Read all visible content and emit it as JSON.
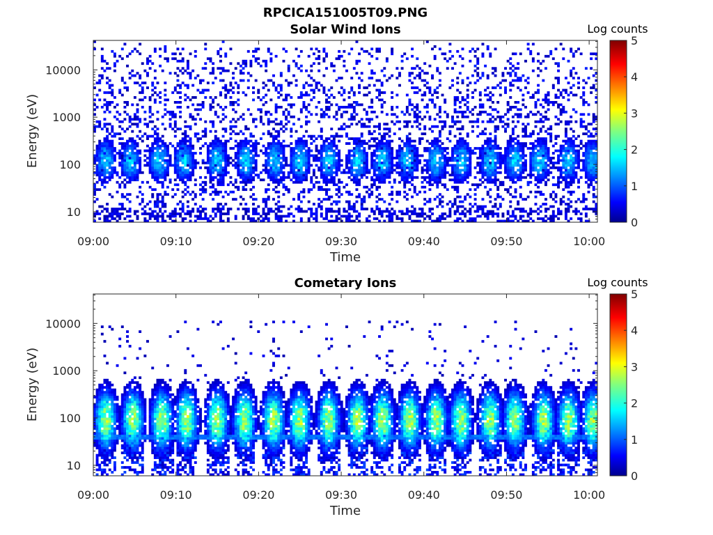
{
  "figure_title": "RPCICA151005T09.PNG",
  "chart_data": [
    {
      "type": "heatmap",
      "title": "Solar Wind Ions",
      "xlabel": "Time",
      "ylabel": "Energy (eV)",
      "x_ticks": [
        "09:00",
        "09:10",
        "09:20",
        "09:30",
        "09:40",
        "09:50",
        "10:00"
      ],
      "x_range": [
        "09:00",
        "10:01"
      ],
      "y_scale": "log",
      "y_ticks": [
        10,
        100,
        1000,
        10000
      ],
      "y_tick_labels": [
        "10",
        "100",
        "1000",
        "10000"
      ],
      "y_range_eV": [
        6,
        42000
      ],
      "colorbar": {
        "label": "Log counts",
        "min": 0,
        "max": 5,
        "ticks": [
          "0",
          "1",
          "2",
          "3",
          "4",
          "5"
        ],
        "colormap": "jet"
      },
      "pattern": "sparse low-count background (0-1) across 8-30000 eV; periodic bursts ~1.5-2 log counts near 60-300 eV roughly every 3.3 minutes",
      "burst_times_min": [
        1.5,
        4.5,
        8,
        11,
        15,
        18.5,
        22,
        25,
        28.5,
        32,
        35,
        38,
        41.5,
        44.5,
        48,
        51,
        54,
        57.5,
        60.5
      ],
      "burst_center_eV": 120,
      "burst_peak_log_counts": 1.8
    },
    {
      "type": "heatmap",
      "title": "Cometary Ions",
      "xlabel": "Time",
      "ylabel": "Energy (eV)",
      "x_ticks": [
        "09:00",
        "09:10",
        "09:20",
        "09:30",
        "09:40",
        "09:50",
        "10:00"
      ],
      "x_range": [
        "09:00",
        "10:01"
      ],
      "y_scale": "log",
      "y_ticks": [
        10,
        100,
        1000,
        10000
      ],
      "y_tick_labels": [
        "10",
        "100",
        "1000",
        "10000"
      ],
      "y_range_eV": [
        6,
        42000
      ],
      "colorbar": {
        "label": "Log counts",
        "min": 0,
        "max": 5,
        "ticks": [
          "0",
          "1",
          "2",
          "3",
          "4",
          "5"
        ],
        "colormap": "jet"
      },
      "pattern": "periodic ion bursts 20-500 eV every ~3.3 minutes, peak ~2.5-3 log counts near 70-150 eV; constant faint band at ~40 eV; sparse counts up to 10000 eV",
      "burst_times_min": [
        1.5,
        4.8,
        8.3,
        11.3,
        15,
        18.3,
        21.8,
        25,
        28.5,
        32,
        35,
        38.3,
        41.5,
        44.5,
        48,
        51,
        54.5,
        57.5,
        60.5
      ],
      "burst_center_eV": 90,
      "burst_peak_log_counts": 2.8,
      "band_eV": 40
    }
  ]
}
